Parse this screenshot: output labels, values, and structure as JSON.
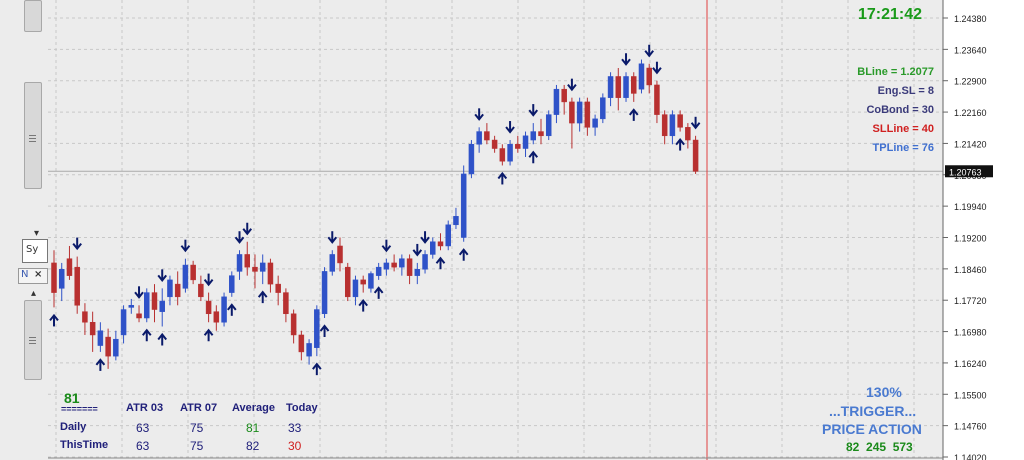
{
  "left_panel": {
    "tab_label": "Sy",
    "nav_tab_label": "N",
    "close_glyph": "×"
  },
  "clock": {
    "time": "17:21:42",
    "color": "#1a9a1a"
  },
  "info_lines": [
    {
      "label": "BLine = 1.2077",
      "color": "#2a9a2a"
    },
    {
      "label": "Eng.SL = 8",
      "color": "#3a3a7a"
    },
    {
      "label": "CoBond = 30",
      "color": "#3a3a7a"
    },
    {
      "label": "SLLine = 40",
      "color": "#d02020"
    },
    {
      "label": "TPLine = 76",
      "color": "#4070d0"
    }
  ],
  "price_axis": {
    "ticks": [
      "1.24380",
      "1.23640",
      "1.22900",
      "1.22160",
      "1.21420",
      "1.20680",
      "1.19940",
      "1.19200",
      "1.18460",
      "1.17720",
      "1.16980",
      "1.16240",
      "1.15500",
      "1.14760",
      "1.14020"
    ],
    "current_price": "1.20763"
  },
  "bottom_left": {
    "big_value": "81",
    "big_color": "#1a8a1a",
    "separator": "=======",
    "headers": [
      "ATR 03",
      "ATR 07",
      "Average",
      "Today"
    ],
    "rows": [
      {
        "label": "Daily",
        "values": [
          "63",
          "75",
          "81",
          "33"
        ],
        "colors": [
          "#20207a",
          "#20207a",
          "#1a8a1a",
          "#20207a"
        ]
      },
      {
        "label": "ThisTime",
        "values": [
          "63",
          "75",
          "82",
          "30"
        ],
        "colors": [
          "#20207a",
          "#20207a",
          "#20207a",
          "#d02020"
        ]
      }
    ]
  },
  "bottom_right": {
    "percent": "130%",
    "trigger": "...TRIGGER...",
    "price_action": "PRICE ACTION",
    "numbers": "82  245  573",
    "text_color": "#4a7ad0",
    "numbers_color": "#1a8a1a"
  },
  "colors": {
    "bull": "#2f52c8",
    "bear": "#b83030",
    "arrow": "#0a1a6a",
    "grid": "#c8c8c8",
    "vline": "#e04040"
  },
  "chart_data": {
    "type": "candlestick",
    "ylim": [
      1.1402,
      1.2438
    ],
    "candles": [
      [
        1.186,
        1.189,
        1.1755,
        1.179
      ],
      [
        1.18,
        1.186,
        1.177,
        1.1845
      ],
      [
        1.187,
        1.19,
        1.182,
        1.183
      ],
      [
        1.185,
        1.1875,
        1.174,
        1.176
      ],
      [
        1.1745,
        1.1765,
        1.169,
        1.172
      ],
      [
        1.172,
        1.1745,
        1.165,
        1.169
      ],
      [
        1.1665,
        1.172,
        1.165,
        1.17
      ],
      [
        1.1685,
        1.1705,
        1.161,
        1.164
      ],
      [
        1.164,
        1.17,
        1.163,
        1.168
      ],
      [
        1.169,
        1.176,
        1.167,
        1.175
      ],
      [
        1.1755,
        1.1775,
        1.174,
        1.176
      ],
      [
        1.174,
        1.176,
        1.172,
        1.173
      ],
      [
        1.173,
        1.18,
        1.172,
        1.179
      ],
      [
        1.179,
        1.181,
        1.172,
        1.175
      ],
      [
        1.1745,
        1.18,
        1.171,
        1.177
      ],
      [
        1.178,
        1.183,
        1.176,
        1.182
      ],
      [
        1.181,
        1.184,
        1.176,
        1.178
      ],
      [
        1.18,
        1.187,
        1.179,
        1.1855
      ],
      [
        1.1855,
        1.1865,
        1.181,
        1.182
      ],
      [
        1.181,
        1.183,
        1.177,
        1.178
      ],
      [
        1.177,
        1.179,
        1.172,
        1.174
      ],
      [
        1.1745,
        1.176,
        1.17,
        1.172
      ],
      [
        1.172,
        1.179,
        1.171,
        1.178
      ],
      [
        1.179,
        1.184,
        1.178,
        1.183
      ],
      [
        1.184,
        1.189,
        1.182,
        1.188
      ],
      [
        1.188,
        1.191,
        1.183,
        1.185
      ],
      [
        1.185,
        1.188,
        1.18,
        1.184
      ],
      [
        1.184,
        1.188,
        1.181,
        1.186
      ],
      [
        1.186,
        1.187,
        1.179,
        1.181
      ],
      [
        1.181,
        1.183,
        1.176,
        1.179
      ],
      [
        1.179,
        1.18,
        1.172,
        1.174
      ],
      [
        1.174,
        1.175,
        1.167,
        1.169
      ],
      [
        1.169,
        1.17,
        1.163,
        1.165
      ],
      [
        1.164,
        1.168,
        1.162,
        1.167
      ],
      [
        1.166,
        1.176,
        1.164,
        1.175
      ],
      [
        1.174,
        1.185,
        1.173,
        1.184
      ],
      [
        1.184,
        1.189,
        1.183,
        1.188
      ],
      [
        1.19,
        1.192,
        1.184,
        1.186
      ],
      [
        1.185,
        1.186,
        1.177,
        1.178
      ],
      [
        1.178,
        1.183,
        1.176,
        1.182
      ],
      [
        1.182,
        1.183,
        1.179,
        1.181
      ],
      [
        1.18,
        1.184,
        1.179,
        1.1835
      ],
      [
        1.183,
        1.186,
        1.182,
        1.185
      ],
      [
        1.1845,
        1.187,
        1.183,
        1.186
      ],
      [
        1.186,
        1.188,
        1.184,
        1.185
      ],
      [
        1.185,
        1.188,
        1.183,
        1.187
      ],
      [
        1.187,
        1.188,
        1.181,
        1.183
      ],
      [
        1.183,
        1.186,
        1.181,
        1.1845
      ],
      [
        1.1845,
        1.189,
        1.1835,
        1.188
      ],
      [
        1.188,
        1.192,
        1.187,
        1.191
      ],
      [
        1.191,
        1.193,
        1.189,
        1.19
      ],
      [
        1.19,
        1.196,
        1.189,
        1.195
      ],
      [
        1.195,
        1.199,
        1.194,
        1.197
      ],
      [
        1.192,
        1.209,
        1.191,
        1.207
      ],
      [
        1.207,
        1.215,
        1.206,
        1.214
      ],
      [
        1.214,
        1.218,
        1.212,
        1.217
      ],
      [
        1.217,
        1.219,
        1.214,
        1.215
      ],
      [
        1.215,
        1.216,
        1.212,
        1.213
      ],
      [
        1.213,
        1.214,
        1.209,
        1.21
      ],
      [
        1.21,
        1.215,
        1.209,
        1.214
      ],
      [
        1.214,
        1.216,
        1.212,
        1.213
      ],
      [
        1.213,
        1.217,
        1.211,
        1.216
      ],
      [
        1.215,
        1.219,
        1.214,
        1.217
      ],
      [
        1.217,
        1.22,
        1.214,
        1.216
      ],
      [
        1.216,
        1.222,
        1.215,
        1.221
      ],
      [
        1.221,
        1.228,
        1.219,
        1.227
      ],
      [
        1.227,
        1.228,
        1.221,
        1.224
      ],
      [
        1.224,
        1.225,
        1.213,
        1.219
      ],
      [
        1.219,
        1.225,
        1.217,
        1.224
      ],
      [
        1.224,
        1.225,
        1.216,
        1.218
      ],
      [
        1.218,
        1.221,
        1.216,
        1.22
      ],
      [
        1.22,
        1.226,
        1.219,
        1.225
      ],
      [
        1.225,
        1.231,
        1.223,
        1.23
      ],
      [
        1.23,
        1.232,
        1.222,
        1.225
      ],
      [
        1.225,
        1.231,
        1.224,
        1.23
      ],
      [
        1.23,
        1.231,
        1.224,
        1.226
      ],
      [
        1.227,
        1.234,
        1.226,
        1.233
      ],
      [
        1.232,
        1.233,
        1.226,
        1.228
      ],
      [
        1.228,
        1.229,
        1.219,
        1.221
      ],
      [
        1.221,
        1.222,
        1.214,
        1.216
      ],
      [
        1.216,
        1.222,
        1.214,
        1.221
      ],
      [
        1.221,
        1.222,
        1.217,
        1.218
      ],
      [
        1.218,
        1.219,
        1.213,
        1.215
      ],
      [
        1.215,
        1.216,
        1.207,
        1.2076
      ]
    ],
    "arrows_down": [
      3,
      11,
      14,
      17,
      20,
      24,
      25,
      36,
      43,
      47,
      48,
      55,
      59,
      62,
      67,
      74,
      77,
      78,
      83
    ],
    "arrows_up": [
      0,
      6,
      12,
      14,
      20,
      23,
      27,
      34,
      35,
      40,
      42,
      50,
      53,
      58,
      62,
      75,
      81
    ]
  }
}
